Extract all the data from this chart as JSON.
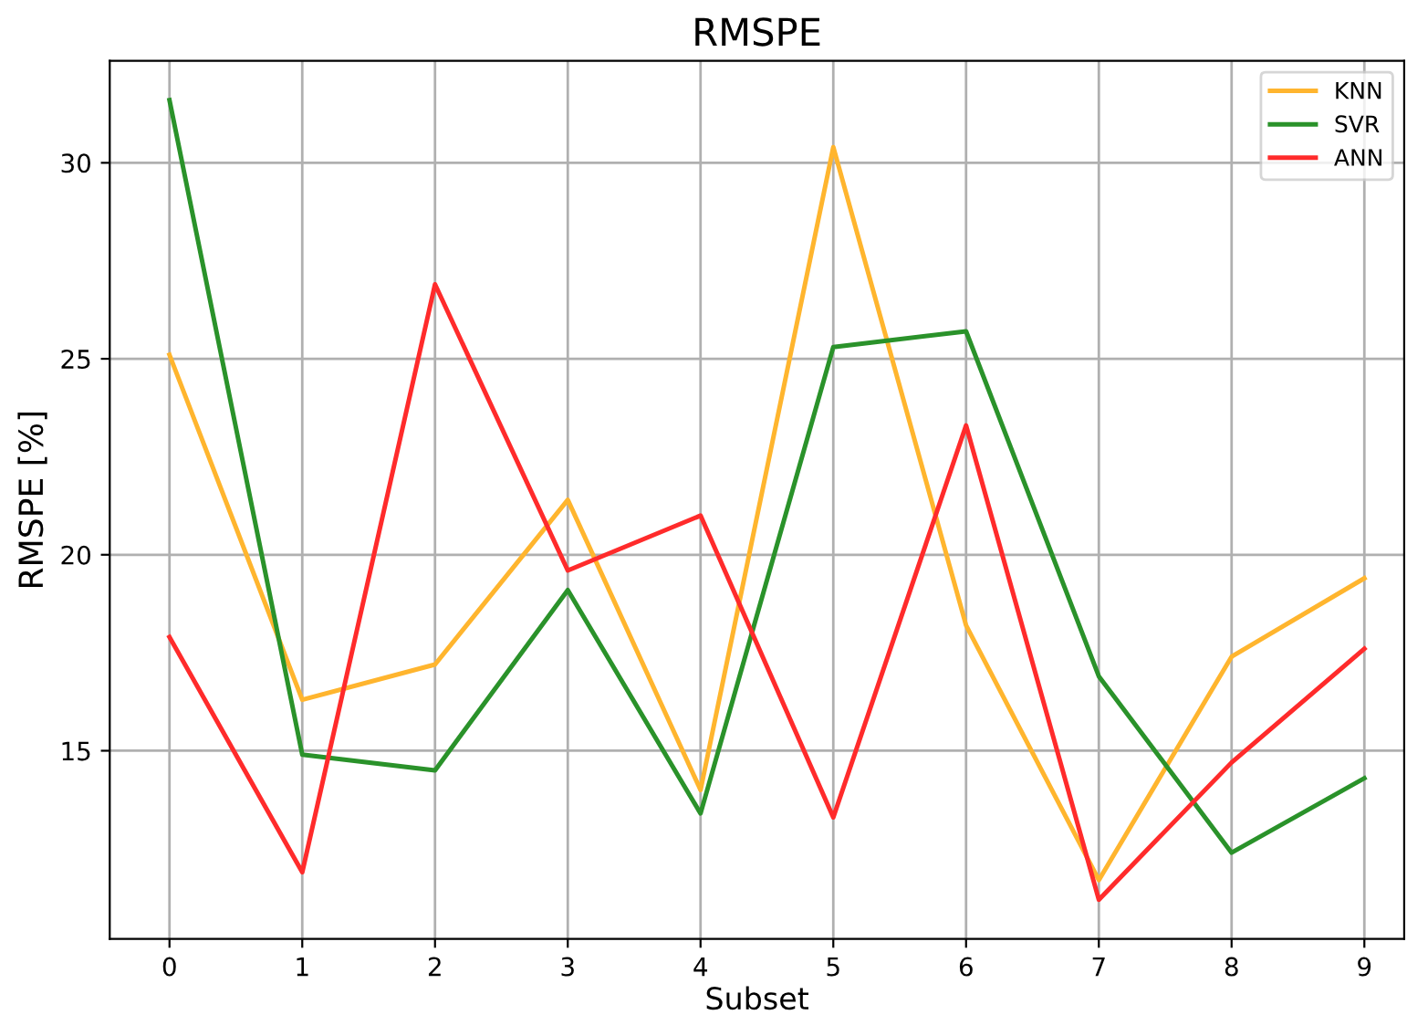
{
  "chart_data": {
    "type": "line",
    "title": "RMSPE",
    "xlabel": "Subset",
    "ylabel": "RMSPE [%]",
    "x": [
      0,
      1,
      2,
      3,
      4,
      5,
      6,
      7,
      8,
      9
    ],
    "series": [
      {
        "name": "KNN",
        "color": "#ffb52e",
        "values": [
          25.1,
          16.3,
          17.2,
          21.4,
          14.0,
          30.4,
          18.2,
          11.7,
          17.4,
          19.4
        ]
      },
      {
        "name": "SVR",
        "color": "#2a922a",
        "values": [
          31.6,
          14.9,
          14.5,
          19.1,
          13.4,
          25.3,
          25.7,
          16.9,
          12.4,
          14.3
        ]
      },
      {
        "name": "ANN",
        "color": "#ff2b2b",
        "values": [
          17.9,
          11.9,
          26.9,
          19.6,
          21.0,
          13.3,
          23.3,
          11.2,
          14.7,
          17.6
        ]
      }
    ],
    "xlim": [
      -0.45,
      9.3
    ],
    "xticks": [
      0,
      1,
      2,
      3,
      4,
      5,
      6,
      7,
      8,
      9
    ],
    "ylim": [
      10.2,
      32.6
    ],
    "yticks": [
      15,
      20,
      25,
      30
    ],
    "grid": true,
    "legend": "top right"
  }
}
